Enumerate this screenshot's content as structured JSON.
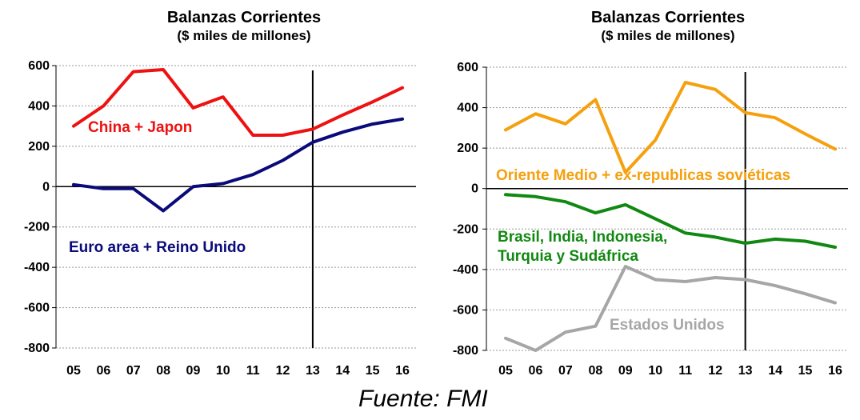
{
  "source": "Fuente: FMI",
  "chart_data": [
    {
      "type": "line",
      "title": "Balanzas Corrientes",
      "subtitle": "($ miles de millones)",
      "categories": [
        "05",
        "06",
        "07",
        "08",
        "09",
        "10",
        "11",
        "12",
        "13",
        "14",
        "15",
        "16"
      ],
      "ylim": [
        -800,
        600
      ],
      "yticks": [
        "600",
        "400",
        "200",
        "0",
        "-200",
        "-400",
        "-600",
        "-800"
      ],
      "grid": true,
      "vertical_marker_category": "13",
      "series": [
        {
          "name": "China + Japon",
          "color": "#ee1111",
          "values": [
            300,
            400,
            570,
            580,
            390,
            445,
            255,
            255,
            285,
            355,
            420,
            490
          ]
        },
        {
          "name": "Euro area + Reino Unido",
          "color": "#0a0a7a",
          "values": [
            10,
            -10,
            -10,
            -120,
            0,
            15,
            60,
            130,
            220,
            270,
            310,
            335
          ]
        }
      ]
    },
    {
      "type": "line",
      "title": "Balanzas Corrientes",
      "subtitle": "($ miles de millones)",
      "categories": [
        "05",
        "06",
        "07",
        "08",
        "09",
        "10",
        "11",
        "12",
        "13",
        "14",
        "15",
        "16"
      ],
      "ylim": [
        -800,
        600
      ],
      "yticks": [
        "600",
        "400",
        "200",
        "0",
        "-200",
        "-400",
        "-600",
        "-800"
      ],
      "grid": true,
      "vertical_marker_category": "13",
      "series": [
        {
          "name": "Oriente Medio + ex-republicas soviéticas",
          "color": "#f5a00f",
          "values": [
            290,
            370,
            320,
            440,
            80,
            240,
            525,
            490,
            375,
            350,
            270,
            195
          ]
        },
        {
          "name": "Brasil, India, Indonesia,\nTurquia y Sudáfrica",
          "color": "#118811",
          "values": [
            -30,
            -40,
            -65,
            -120,
            -80,
            -150,
            -220,
            -240,
            -270,
            -250,
            -260,
            -290
          ]
        },
        {
          "name": "Estados Unidos",
          "color": "#a6a6a6",
          "values": [
            -740,
            -800,
            -710,
            -680,
            -385,
            -450,
            -460,
            -440,
            -450,
            -480,
            -520,
            -565
          ]
        }
      ]
    }
  ]
}
